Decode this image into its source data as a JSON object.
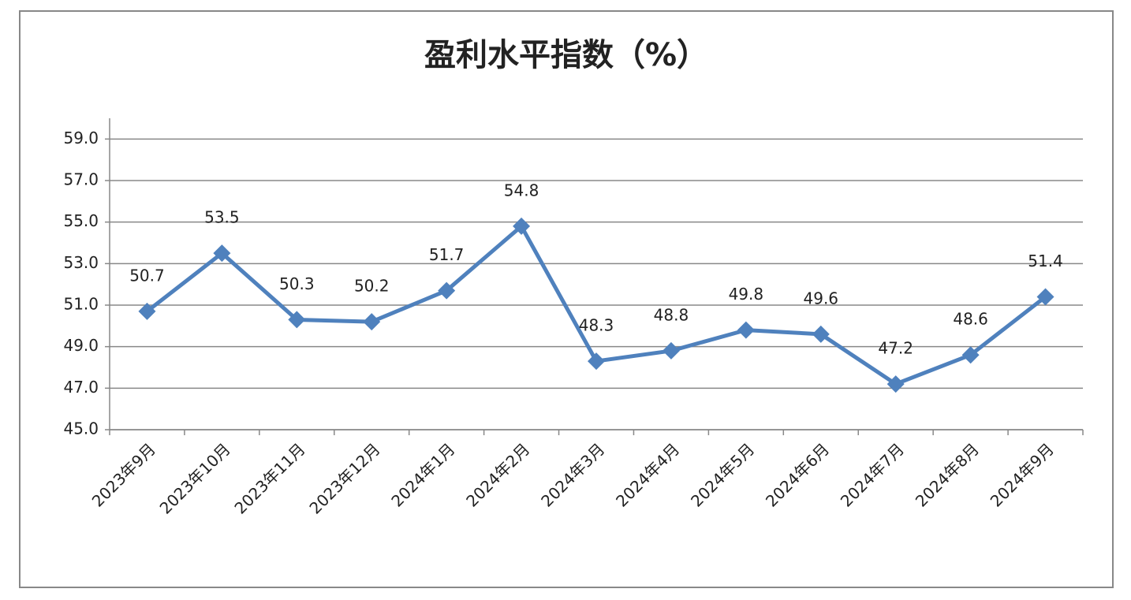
{
  "chart_data": {
    "type": "line",
    "title": "盈利水平指数（%）",
    "categories": [
      "2023年9月",
      "2023年10月",
      "2023年11月",
      "2023年12月",
      "2024年1月",
      "2024年2月",
      "2024年3月",
      "2024年4月",
      "2024年5月",
      "2024年6月",
      "2024年7月",
      "2024年8月",
      "2024年9月"
    ],
    "values": [
      50.7,
      53.5,
      50.3,
      50.2,
      51.7,
      54.8,
      48.3,
      48.8,
      49.8,
      49.6,
      47.2,
      48.6,
      51.4
    ],
    "color": "#4f81bd",
    "ylim": [
      45,
      60
    ],
    "yticks": [
      {
        "value": 45,
        "label": "45.0"
      },
      {
        "value": 47,
        "label": "47.0"
      },
      {
        "value": 49,
        "label": "49.0"
      },
      {
        "value": 51,
        "label": "51.0"
      },
      {
        "value": 53,
        "label": "53.0"
      },
      {
        "value": 55,
        "label": "55.0"
      },
      {
        "value": 57,
        "label": "57.0"
      },
      {
        "value": 59,
        "label": "59.0"
      }
    ],
    "grid": true
  }
}
